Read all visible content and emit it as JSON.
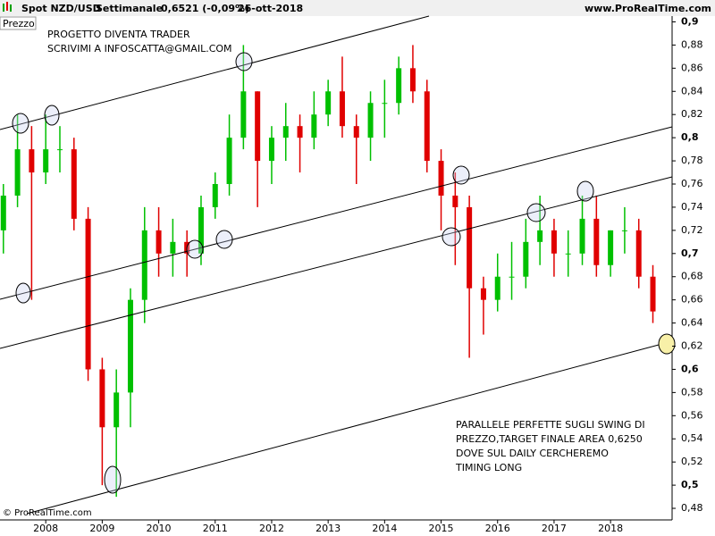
{
  "chart_data": {
    "type": "ohlc",
    "header": {
      "symbol": "Spot NZD/USD",
      "period": "Settimanale",
      "last": "0,6521 (-0,09%)",
      "date": "26-ott-2018",
      "site": "www.ProRealTime.com"
    },
    "ylabel": "Prezzo",
    "copyright": "© ProRealTime.com",
    "annotations": [
      "PROGETTO DIVENTA TRADER",
      "SCRIVIMI A INFOSCATTA@GMAIL.COM",
      "PARALLELE PERFETTE SUGLI SWING DI",
      "PREZZO,TARGET FINALE AREA 0,6250",
      "DOVE SUL DAILY CERCHEREMO",
      "TIMING LONG"
    ],
    "up_color": "#00c000",
    "down_color": "#e00000",
    "x": [
      2007.25,
      2007.5,
      2007.75,
      2008.0,
      2008.25,
      2008.5,
      2008.75,
      2009.0,
      2009.25,
      2009.5,
      2009.75,
      2010.0,
      2010.25,
      2010.5,
      2010.75,
      2011.0,
      2011.25,
      2011.5,
      2011.75,
      2012.0,
      2012.25,
      2012.5,
      2012.75,
      2013.0,
      2013.25,
      2013.5,
      2013.75,
      2014.0,
      2014.25,
      2014.5,
      2014.75,
      2015.0,
      2015.25,
      2015.5,
      2015.75,
      2016.0,
      2016.25,
      2016.5,
      2016.75,
      2017.0,
      2017.25,
      2017.5,
      2017.75,
      2018.0,
      2018.25,
      2018.5,
      2018.75
    ],
    "open": [
      0.72,
      0.75,
      0.79,
      0.77,
      0.79,
      0.79,
      0.73,
      0.6,
      0.55,
      0.58,
      0.66,
      0.72,
      0.7,
      0.71,
      0.7,
      0.74,
      0.76,
      0.8,
      0.84,
      0.78,
      0.8,
      0.81,
      0.8,
      0.82,
      0.84,
      0.81,
      0.8,
      0.83,
      0.83,
      0.86,
      0.84,
      0.78,
      0.75,
      0.74,
      0.67,
      0.66,
      0.68,
      0.68,
      0.71,
      0.72,
      0.7,
      0.7,
      0.73,
      0.69,
      0.72,
      0.72,
      0.68
    ],
    "high": [
      0.76,
      0.82,
      0.81,
      0.82,
      0.81,
      0.8,
      0.74,
      0.61,
      0.6,
      0.67,
      0.74,
      0.74,
      0.73,
      0.72,
      0.75,
      0.77,
      0.82,
      0.88,
      0.84,
      0.81,
      0.83,
      0.82,
      0.84,
      0.85,
      0.87,
      0.82,
      0.84,
      0.85,
      0.87,
      0.88,
      0.85,
      0.79,
      0.77,
      0.75,
      0.68,
      0.7,
      0.71,
      0.73,
      0.75,
      0.73,
      0.72,
      0.75,
      0.75,
      0.72,
      0.74,
      0.73,
      0.69
    ],
    "low": [
      0.7,
      0.74,
      0.66,
      0.76,
      0.77,
      0.72,
      0.59,
      0.5,
      0.49,
      0.55,
      0.64,
      0.68,
      0.68,
      0.68,
      0.69,
      0.73,
      0.75,
      0.79,
      0.74,
      0.76,
      0.78,
      0.77,
      0.79,
      0.81,
      0.8,
      0.76,
      0.78,
      0.8,
      0.82,
      0.83,
      0.77,
      0.72,
      0.69,
      0.61,
      0.63,
      0.65,
      0.66,
      0.67,
      0.69,
      0.68,
      0.68,
      0.69,
      0.68,
      0.68,
      0.7,
      0.67,
      0.64
    ],
    "close": [
      0.75,
      0.79,
      0.77,
      0.79,
      0.79,
      0.73,
      0.6,
      0.55,
      0.58,
      0.66,
      0.72,
      0.7,
      0.71,
      0.7,
      0.74,
      0.76,
      0.8,
      0.84,
      0.78,
      0.8,
      0.81,
      0.8,
      0.82,
      0.84,
      0.81,
      0.8,
      0.83,
      0.83,
      0.86,
      0.84,
      0.78,
      0.75,
      0.74,
      0.67,
      0.66,
      0.68,
      0.68,
      0.71,
      0.72,
      0.7,
      0.7,
      0.73,
      0.69,
      0.72,
      0.72,
      0.68,
      0.65
    ],
    "xlim": [
      2007.19,
      2019.09
    ],
    "xticks": [
      2008,
      2009,
      2010,
      2011,
      2012,
      2013,
      2014,
      2015,
      2016,
      2017,
      2018
    ],
    "ylim": [
      0.47,
      0.905
    ],
    "yticks": [
      {
        "value": 0.48,
        "label": "0,48"
      },
      {
        "value": 0.5,
        "label": "0,5"
      },
      {
        "value": 0.52,
        "label": "0,52"
      },
      {
        "value": 0.54,
        "label": "0,54"
      },
      {
        "value": 0.56,
        "label": "0,56"
      },
      {
        "value": 0.58,
        "label": "0,58"
      },
      {
        "value": 0.6,
        "label": "0,6"
      },
      {
        "value": 0.62,
        "label": "0,62"
      },
      {
        "value": 0.64,
        "label": "0,64"
      },
      {
        "value": 0.66,
        "label": "0,66"
      },
      {
        "value": 0.68,
        "label": "0,68"
      },
      {
        "value": 0.7,
        "label": "0,7"
      },
      {
        "value": 0.72,
        "label": "0,72"
      },
      {
        "value": 0.74,
        "label": "0,74"
      },
      {
        "value": 0.76,
        "label": "0,76"
      },
      {
        "value": 0.78,
        "label": "0,78"
      },
      {
        "value": 0.8,
        "label": "0,8"
      },
      {
        "value": 0.82,
        "label": "0,82"
      },
      {
        "value": 0.84,
        "label": "0,84"
      },
      {
        "value": 0.86,
        "label": "0,86"
      },
      {
        "value": 0.88,
        "label": "0,88"
      },
      {
        "value": 0.9,
        "label": "0,9"
      }
    ]
  }
}
